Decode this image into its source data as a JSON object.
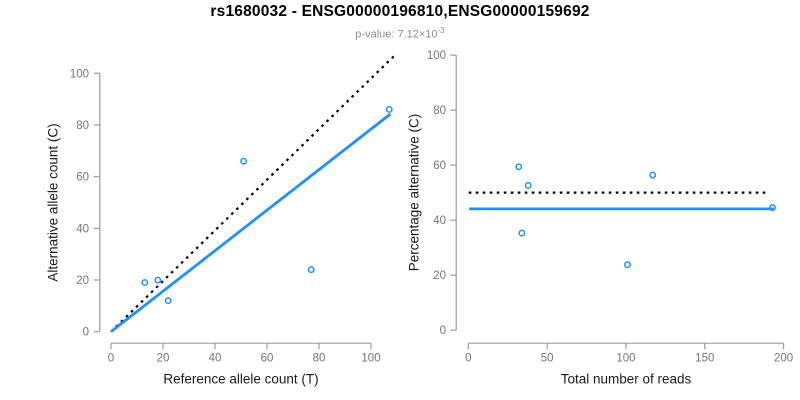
{
  "header": {
    "title": "rs1680032 - ENSG00000196810,ENSG00000159692",
    "subtitle_prefix": "p-value: 7.12×10",
    "subtitle_exponent": "-3",
    "p_value": "7.12e-3",
    "snp_id": "rs1680032",
    "genes": "ENSG00000196810,ENSG00000159692"
  },
  "colors": {
    "point_and_fit_blue": "#1E90FF",
    "reference_line_black": "#000000",
    "axis_line": "#9b9b9b",
    "tick_label": "#757575",
    "axis_title": "#1a1a1a"
  },
  "chart_data": [
    {
      "type": "scatter",
      "panel": "left",
      "xlabel": "Reference allele count (T)",
      "ylabel": "Alternative allele count (C)",
      "xlim": [
        0,
        107
      ],
      "ylim": [
        0,
        107
      ],
      "xticks": [
        0,
        20,
        40,
        60,
        80,
        100
      ],
      "yticks": [
        0,
        20,
        40,
        60,
        80,
        100
      ],
      "grid": false,
      "legend": "none",
      "points": [
        [
          13,
          19
        ],
        [
          18,
          20
        ],
        [
          22,
          12
        ],
        [
          51,
          66
        ],
        [
          77,
          24
        ],
        [
          107,
          86
        ]
      ],
      "lines": [
        {
          "name": "identity-line",
          "style": "dotted",
          "color": "#000000",
          "from": [
            0,
            0
          ],
          "to": [
            109.8,
            107.6
          ],
          "meaning": "y = x (50% alternative)"
        },
        {
          "name": "fit-line",
          "style": "solid",
          "color": "#1E90FF",
          "from": [
            0,
            0
          ],
          "to": [
            107.4,
            84.2
          ],
          "slope": 0.79
        }
      ]
    },
    {
      "type": "scatter",
      "panel": "right",
      "xlabel": "Total number of reads",
      "ylabel": "Percentage alternative (C)",
      "xlim": [
        0,
        200
      ],
      "ylim": [
        0,
        100
      ],
      "xticks": [
        0,
        50,
        100,
        150,
        200
      ],
      "yticks": [
        0,
        20,
        40,
        60,
        80,
        100
      ],
      "grid": false,
      "legend": "none",
      "points": [
        [
          32,
          59.4
        ],
        [
          38,
          52.6
        ],
        [
          34,
          35.3
        ],
        [
          117,
          56.4
        ],
        [
          101,
          23.8
        ],
        [
          193,
          44.6
        ]
      ],
      "lines": [
        {
          "name": "fifty-percent-line",
          "style": "dotted",
          "color": "#000000",
          "from": [
            0.3,
            50
          ],
          "to": [
            189.8,
            50
          ],
          "meaning": "50% reference"
        },
        {
          "name": "mean-percentage-line",
          "style": "solid",
          "color": "#1E90FF",
          "from": [
            0.5,
            44.1
          ],
          "to": [
            193.8,
            44.1
          ],
          "value": 44.1
        }
      ]
    }
  ]
}
